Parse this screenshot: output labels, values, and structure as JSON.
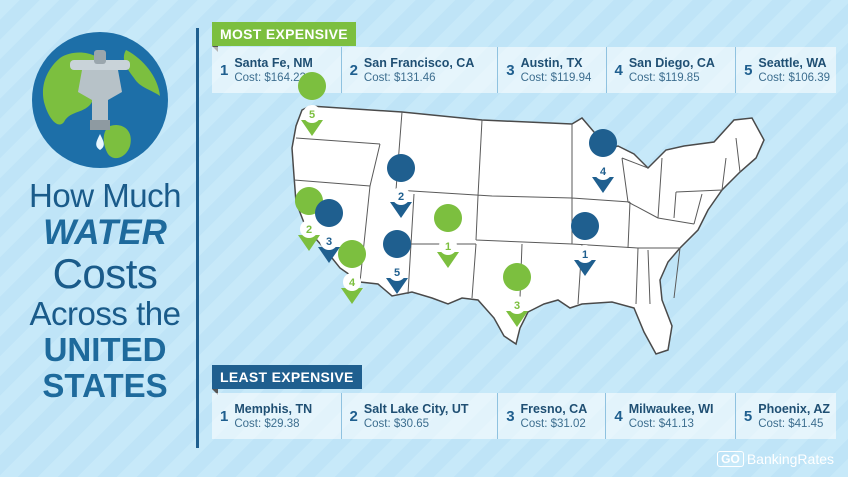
{
  "title": {
    "line1": "How Much",
    "line2": "WATER",
    "line3": "Costs",
    "line4": "Across the",
    "line5": "UNITED",
    "line6": "STATES"
  },
  "most_expensive": {
    "label": "MOST EXPENSIVE",
    "items": [
      {
        "rank": "1",
        "city": "Santa Fe, NM",
        "cost": "Cost: $164.22"
      },
      {
        "rank": "2",
        "city": "San Francisco, CA",
        "cost": "Cost: $131.46"
      },
      {
        "rank": "3",
        "city": "Austin, TX",
        "cost": "Cost: $119.94"
      },
      {
        "rank": "4",
        "city": "San Diego, CA",
        "cost": "Cost: $119.85"
      },
      {
        "rank": "5",
        "city": "Seattle, WA",
        "cost": "Cost: $106.39"
      }
    ]
  },
  "least_expensive": {
    "label": "LEAST EXPENSIVE",
    "items": [
      {
        "rank": "1",
        "city": "Memphis, TN",
        "cost": "Cost: $29.38"
      },
      {
        "rank": "2",
        "city": "Salt Lake City, UT",
        "cost": "Cost: $30.65"
      },
      {
        "rank": "3",
        "city": "Fresno, CA",
        "cost": "Cost: $31.02"
      },
      {
        "rank": "4",
        "city": "Milwaukee, WI",
        "cost": "Cost: $41.13"
      },
      {
        "rank": "5",
        "city": "Phoenix, AZ",
        "cost": "Cost: $41.45"
      }
    ]
  },
  "pins": {
    "green": [
      "5",
      "2",
      "4",
      "1",
      "3"
    ],
    "blue": [
      "2",
      "3",
      "5",
      "4",
      "1"
    ]
  },
  "brand": {
    "go": "GO",
    "name": "BankingRates"
  },
  "colors": {
    "green": "#7cbf3f",
    "blue": "#1f5f8f",
    "map_fill": "#ffffff",
    "map_stroke": "#4a4a4a"
  }
}
